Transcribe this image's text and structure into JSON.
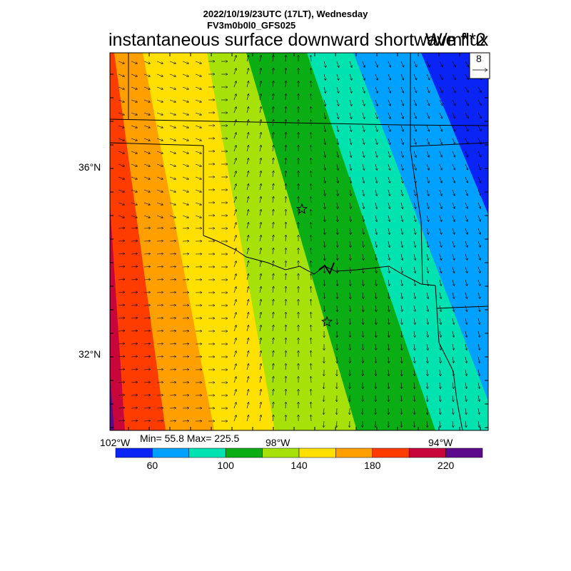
{
  "header": {
    "datetime": "2022/10/19/23UTC (17LT), Wednesday",
    "model": "FV3m0b0l0_GFS025",
    "title": "instantaneous surface downward shortwave flux",
    "units": "W/m**2"
  },
  "map": {
    "lat_labels": [
      "36°N",
      "32°N"
    ],
    "lon_labels": [
      "102°W",
      "98°W",
      "94°W"
    ],
    "stars": 2,
    "wind_vector_reference": {
      "label": "8"
    },
    "field_bands": [
      {
        "range": "< 60",
        "color": "#0a24f5"
      },
      {
        "range": "60-80",
        "color": "#00a0ff"
      },
      {
        "range": "80-100",
        "color": "#00e3b0"
      },
      {
        "range": "100-120",
        "color": "#0aae14"
      },
      {
        "range": "120-140",
        "color": "#a6e10a"
      },
      {
        "range": "140-160",
        "color": "#ffe000"
      },
      {
        "range": "160-180",
        "color": "#ffa000"
      },
      {
        "range": "180-200",
        "color": "#ff3c00"
      },
      {
        "range": "200-220",
        "color": "#c8063c"
      },
      {
        "range": "> 220",
        "color": "#5a0a8a"
      }
    ]
  },
  "stats": {
    "text": "Min= 55.8 Max= 225.5",
    "min": 55.8,
    "max": 225.5
  },
  "colorbar": {
    "colors": [
      "#0a24f5",
      "#00a0ff",
      "#00e3b0",
      "#0aae14",
      "#a6e10a",
      "#ffe000",
      "#ffa000",
      "#ff3c00",
      "#c8063c",
      "#5a0a8a"
    ],
    "tick_labels": [
      "60",
      "100",
      "140",
      "180",
      "220"
    ]
  }
}
